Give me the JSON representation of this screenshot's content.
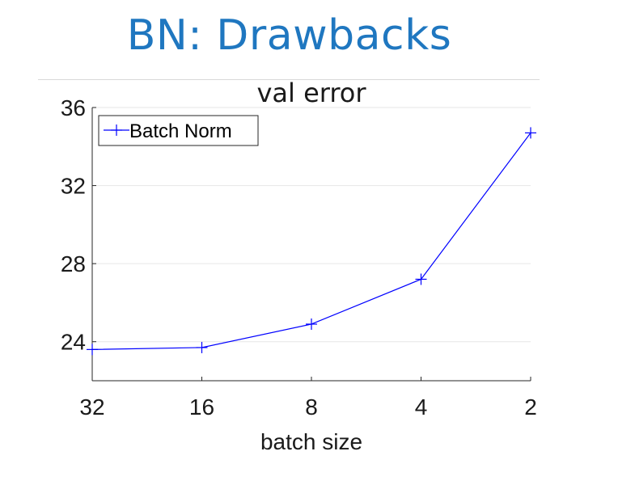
{
  "slide": {
    "title": "BN: Drawbacks"
  },
  "chart_data": {
    "type": "line",
    "title": "val error",
    "xlabel": "batch size",
    "ylabel": "",
    "categories": [
      "32",
      "16",
      "8",
      "4",
      "2"
    ],
    "series": [
      {
        "name": "Batch Norm",
        "values": [
          23.6,
          23.7,
          24.9,
          27.2,
          34.7
        ]
      }
    ],
    "ylim": [
      22,
      36
    ],
    "yticks": [
      24,
      28,
      32,
      36
    ],
    "grid": true,
    "legend": "top-left",
    "colors": {
      "series": "#0000ff",
      "grid": "#e6e6e6",
      "axis": "#262626"
    }
  }
}
